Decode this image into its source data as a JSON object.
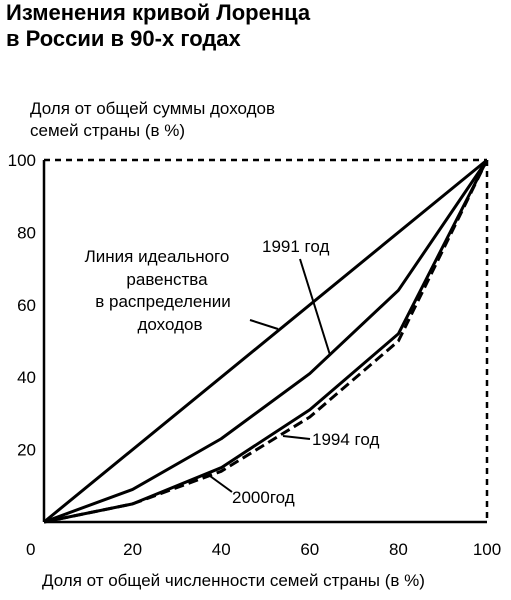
{
  "chart_data": {
    "type": "line",
    "title": [
      "Изменения кривой Лоренца",
      "в России в 90-х годах"
    ],
    "ylabel": [
      "Доля от общей суммы доходов",
      "семей страны (в %)"
    ],
    "xlabel": "Доля от общей численности  семей страны (в %)",
    "xlim": [
      0,
      100
    ],
    "ylim": [
      0,
      100
    ],
    "xticks": [
      "0",
      "20",
      "40",
      "60",
      "80",
      "100"
    ],
    "yticks": [
      "20",
      "40",
      "60",
      "80",
      "100"
    ],
    "grid": false,
    "series": [
      {
        "name": "Линия идеального равенства в распределении доходов",
        "label_lines": [
          "Линия идеального",
          "равенства",
          "в распределении",
          "доходов"
        ],
        "style": "solid",
        "x": [
          0,
          100
        ],
        "y": [
          0,
          100
        ]
      },
      {
        "name": "1991 год",
        "style": "solid",
        "x": [
          0,
          20,
          40,
          60,
          80,
          100
        ],
        "y": [
          0,
          9,
          23,
          41,
          64,
          100
        ]
      },
      {
        "name": "1994 год",
        "style": "solid",
        "x": [
          0,
          20,
          40,
          60,
          80,
          100
        ],
        "y": [
          0,
          5,
          15,
          31,
          52,
          100
        ]
      },
      {
        "name": "2000год",
        "style": "dashed",
        "x": [
          0,
          20,
          40,
          60,
          80,
          100
        ],
        "y": [
          0,
          5,
          14,
          29,
          50,
          100
        ]
      }
    ]
  },
  "colors": {
    "ink": "#000000",
    "background": "#ffffff"
  }
}
